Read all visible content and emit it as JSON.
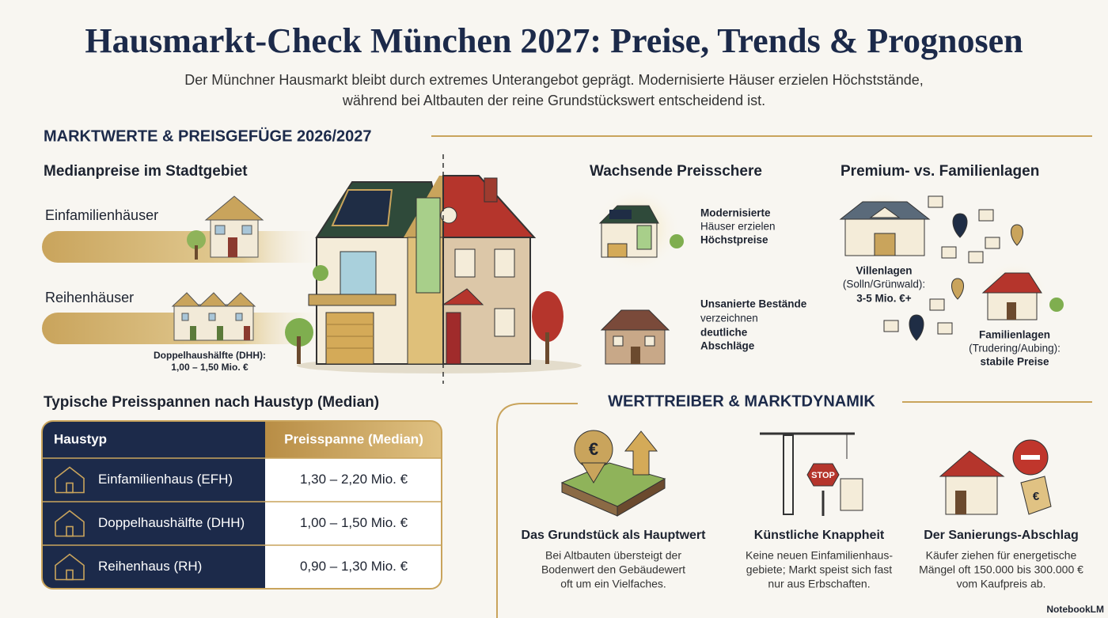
{
  "header": {
    "title": "Hausmarkt-Check München 2027: Preise, Trends & Prognosen",
    "subtitle": [
      "Der Münchner Hausmarkt bleibt durch extremes Unterangebot geprägt. Modernisierte Häuser erzielen Höchststände,",
      "während bei Altbauten der reine Grundstückswert entscheidend ist."
    ]
  },
  "market": {
    "heading": "MARKTWERTE & PREISGEFÜGE 2026/2027"
  },
  "median": {
    "heading": "Medianpreise im Stadtgebiet",
    "items": [
      "Einfamilienhäuser",
      "Reihenhäuser"
    ],
    "note": [
      "Doppelhaushälfte (DHH):",
      "1,00 – 1,50 Mio. €"
    ]
  },
  "scissors": {
    "heading": "Wachsende Preisschere",
    "modern": [
      "Modernisierte",
      "Häuser erzielen",
      "Höchstpreise"
    ],
    "old": [
      "Unsanierte Bestände",
      "verzeichnen",
      "deutliche",
      "Abschläge"
    ]
  },
  "premium": {
    "heading": "Premium- vs. Familienlagen",
    "villa": [
      "Villenlagen",
      "(Solln/Grünwald):",
      "3-5 Mio. €+"
    ],
    "family": [
      "Familienlagen",
      "(Trudering/Aubing):",
      "stabile Preise"
    ]
  },
  "table": {
    "heading": "Typische Preisspannen nach Haustyp (Median)",
    "columns": [
      "Haustyp",
      "Preisspanne (Median)"
    ],
    "rows": [
      [
        "Einfamilienhaus (EFH)",
        "1,30 – 2,20 Mio. €"
      ],
      [
        "Doppelhaushälfte (DHH)",
        "1,00 – 1,50 Mio. €"
      ],
      [
        "Reihenhaus (RH)",
        "0,90 – 1,30 Mio. €"
      ]
    ]
  },
  "drivers": {
    "heading": "WERTTREIBER & MARKTDYNAMIK",
    "items": [
      {
        "icon_label": "€",
        "title": "Das Grundstück als Hauptwert",
        "text": [
          "Bei Altbauten übersteigt der",
          "Bodenwert den Gebäudewert",
          "oft um ein Vielfaches."
        ]
      },
      {
        "icon_label": "STOP",
        "title": "Künstliche Knappheit",
        "text": [
          "Keine neuen Einfamilienhaus-",
          "gebiete; Markt speist sich fast",
          "nur aus Erbschaften."
        ]
      },
      {
        "icon_label": "€",
        "title": "Der Sanierungs-Abschlag",
        "text": [
          "Käufer ziehen für energetische",
          "Mängel oft 150.000 bis 300.000 €",
          "vom Kaufpreis ab."
        ]
      }
    ]
  },
  "footer": {
    "brand": "NotebookLM"
  }
}
